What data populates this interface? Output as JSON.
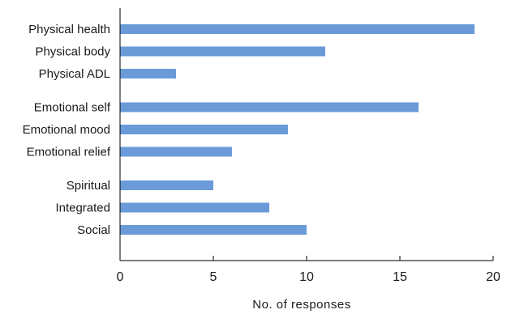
{
  "chart_data": {
    "type": "bar",
    "orientation": "horizontal",
    "title": "",
    "xlabel": "No. of responses",
    "ylabel": "",
    "xlim": [
      0,
      20
    ],
    "xticks": [
      0,
      5,
      10,
      15,
      20
    ],
    "grid": false,
    "bar_color": "#6a9bd8",
    "categories": [
      "Physical health",
      "Physical body",
      "Physical ADL",
      "Emotional self",
      "Emotional mood",
      "Emotional relief",
      "Spiritual",
      "Integrated",
      "Social"
    ],
    "values": [
      19,
      11,
      3,
      16,
      9,
      6,
      5,
      8,
      10
    ],
    "groups": [
      [
        "Physical health",
        "Physical body",
        "Physical ADL"
      ],
      [
        "Emotional self",
        "Emotional mood",
        "Emotional relief"
      ],
      [
        "Spiritual",
        "Integrated",
        "Social"
      ]
    ]
  }
}
